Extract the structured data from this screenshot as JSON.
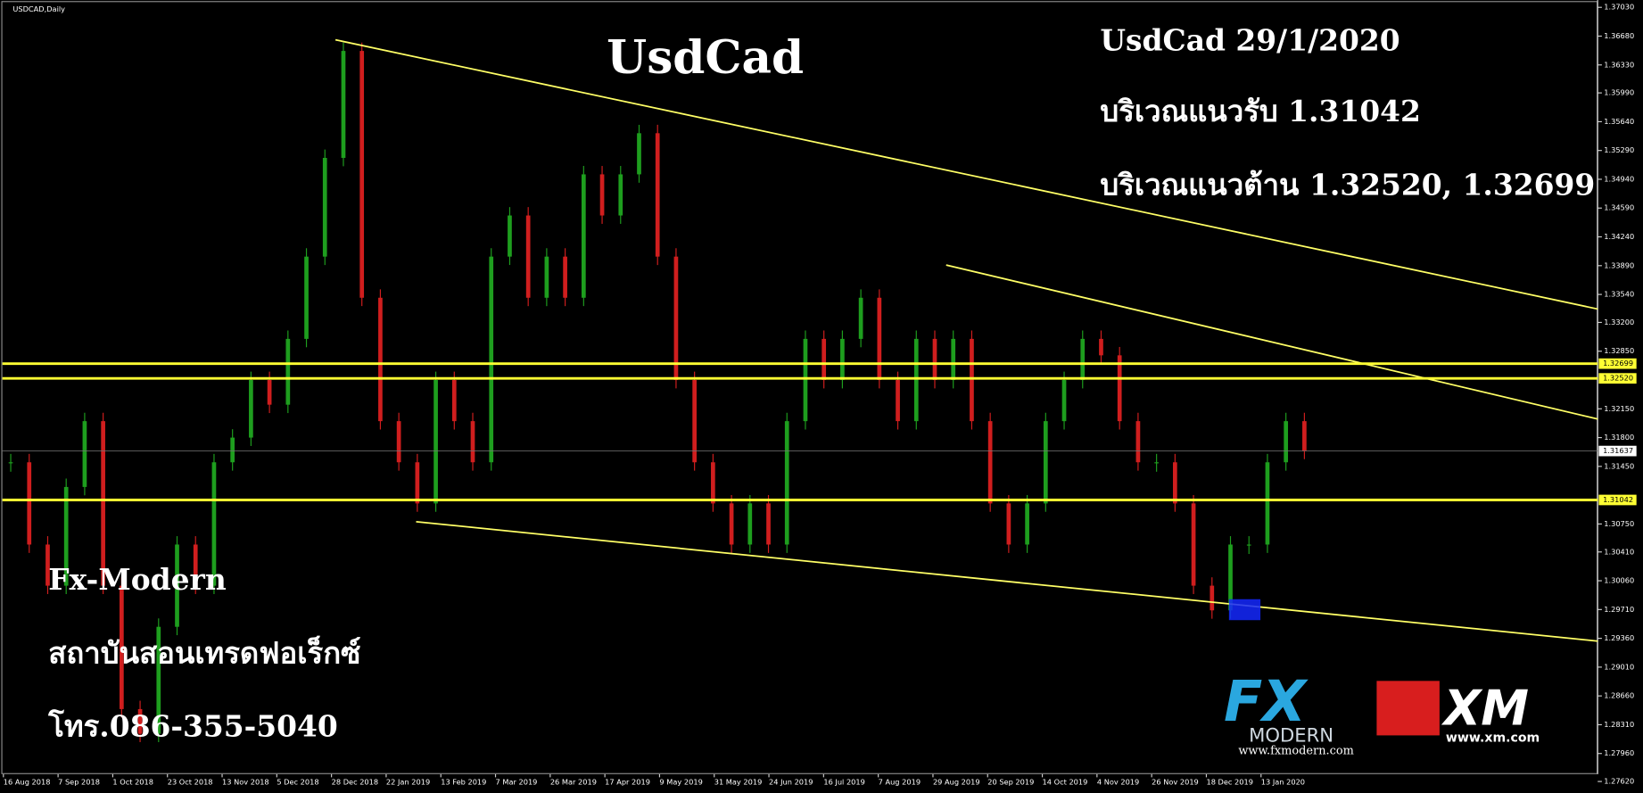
{
  "window_title": "USDCAD,Daily",
  "title": "UsdCad",
  "info": {
    "date_line": "UsdCad 29/1/2020",
    "support_line": "บริเวณแนวรับ 1.31042",
    "resistance_line": "บริเวณแนวต้าน 1.32520, 1.32699"
  },
  "brand": {
    "name": "Fx-Modern",
    "subtitle": "สถาบันสอนเทรดฟอเร็กซ์",
    "phone": "โทร.086-355-5040"
  },
  "logos": {
    "fx": "FX",
    "modern": "MODERN",
    "fx_url": "www.fxmodern.com",
    "xm": "XM",
    "xm_url": "www.xm.com"
  },
  "price_axis": {
    "ylim": [
      1.2762,
      1.3703
    ],
    "ticks": [
      {
        "value": 1.3703,
        "label": "1.37030"
      },
      {
        "value": 1.3668,
        "label": "1.36680"
      },
      {
        "value": 1.3633,
        "label": "1.36330"
      },
      {
        "value": 1.3599,
        "label": "1.35990"
      },
      {
        "value": 1.3564,
        "label": "1.35640"
      },
      {
        "value": 1.3529,
        "label": "1.35290"
      },
      {
        "value": 1.3494,
        "label": "1.34940"
      },
      {
        "value": 1.3459,
        "label": "1.34590"
      },
      {
        "value": 1.3424,
        "label": "1.34240"
      },
      {
        "value": 1.3389,
        "label": "1.33890"
      },
      {
        "value": 1.3354,
        "label": "1.33540"
      },
      {
        "value": 1.332,
        "label": "1.33200"
      },
      {
        "value": 1.3285,
        "label": "1.32850"
      },
      {
        "value": 1.3215,
        "label": "1.32150"
      },
      {
        "value": 1.318,
        "label": "1.31800"
      },
      {
        "value": 1.3145,
        "label": "1.31450"
      },
      {
        "value": 1.3075,
        "label": "1.30750"
      },
      {
        "value": 1.3041,
        "label": "1.30410"
      },
      {
        "value": 1.3006,
        "label": "1.30060"
      },
      {
        "value": 1.2971,
        "label": "1.29710"
      },
      {
        "value": 1.2936,
        "label": "1.29360"
      },
      {
        "value": 1.2901,
        "label": "1.29010"
      },
      {
        "value": 1.2866,
        "label": "1.28660"
      },
      {
        "value": 1.2831,
        "label": "1.28310"
      },
      {
        "value": 1.2796,
        "label": "1.27960"
      },
      {
        "value": 1.2762,
        "label": "1.27620"
      }
    ]
  },
  "levels": [
    {
      "value": 1.32699,
      "label": "1.32699"
    },
    {
      "value": 1.3252,
      "label": "1.32520"
    },
    {
      "value": 1.31042,
      "label": "1.31042"
    }
  ],
  "current_price": {
    "value": 1.31637,
    "label": "1.31637"
  },
  "dates": [
    "16 Aug 2018",
    "7 Sep 2018",
    "1 Oct 2018",
    "23 Oct 2018",
    "13 Nov 2018",
    "5 Dec 2018",
    "28 Dec 2018",
    "22 Jan 2019",
    "13 Feb 2019",
    "7 Mar 2019",
    "26 Mar 2019",
    "17 Apr 2019",
    "9 May 2019",
    "31 May 2019",
    "24 Jun 2019",
    "16 Jul 2019",
    "7 Aug 2019",
    "29 Aug 2019",
    "20 Sep 2019",
    "14 Oct 2019",
    "4 Nov 2019",
    "26 Nov 2019",
    "18 Dec 2019",
    "13 Jan 2020"
  ],
  "closes": [
    1.315,
    1.305,
    1.3,
    1.312,
    1.32,
    1.3,
    1.285,
    1.282,
    1.295,
    1.305,
    1.3,
    1.315,
    1.318,
    1.325,
    1.322,
    1.33,
    1.34,
    1.352,
    1.365,
    1.335,
    1.32,
    1.315,
    1.31,
    1.325,
    1.32,
    1.315,
    1.34,
    1.345,
    1.335,
    1.34,
    1.335,
    1.35,
    1.345,
    1.35,
    1.355,
    1.34,
    1.325,
    1.315,
    1.31,
    1.305,
    1.31,
    1.305,
    1.32,
    1.33,
    1.325,
    1.33,
    1.335,
    1.325,
    1.32,
    1.33,
    1.325,
    1.33,
    1.32,
    1.31,
    1.305,
    1.31,
    1.32,
    1.325,
    1.33,
    1.328,
    1.32,
    1.315,
    1.315,
    1.31,
    1.3,
    1.297,
    1.305,
    1.305,
    1.315,
    1.32,
    1.3164
  ]
}
